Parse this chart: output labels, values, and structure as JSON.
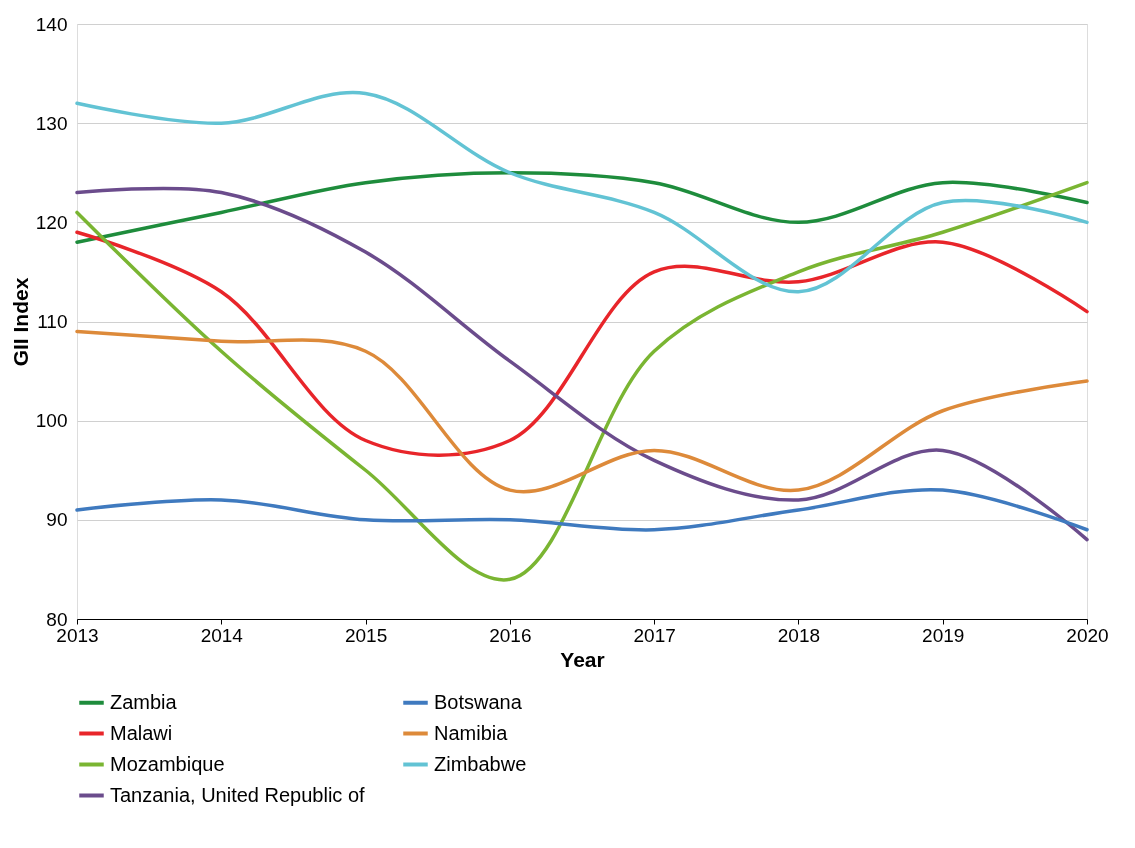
{
  "chart_data": {
    "type": "line",
    "xlabel": "Year",
    "ylabel": "GII Index",
    "x": [
      2013,
      2014,
      2015,
      2016,
      2017,
      2018,
      2019,
      2020
    ],
    "xlim": [
      2013,
      2020
    ],
    "xticks": [
      2013,
      2014,
      2015,
      2016,
      2017,
      2018,
      2019,
      2020
    ],
    "ylim": [
      80,
      140
    ],
    "yticks": [
      80,
      90,
      100,
      110,
      120,
      130,
      140
    ],
    "grid": "y",
    "legend": "bottom",
    "marker": "none",
    "line_style": "solid",
    "series": [
      {
        "name": "Zambia",
        "color": "#1e8c3c",
        "values": [
          118,
          121,
          124,
          125,
          124,
          120,
          124,
          122
        ]
      },
      {
        "name": "Malawi",
        "color": "#e8252a",
        "values": [
          119,
          113,
          98,
          98,
          115,
          114,
          118,
          111
        ]
      },
      {
        "name": "Mozambique",
        "color": "#7ab532",
        "values": [
          121,
          107,
          95,
          84,
          107,
          115,
          119,
          124
        ]
      },
      {
        "name": "Tanzania, United Republic of",
        "color": "#6b4c8c",
        "values": [
          123,
          123,
          117,
          106,
          96,
          92,
          97,
          88
        ]
      },
      {
        "name": "Botswana",
        "color": "#3f7abf",
        "values": [
          91,
          92,
          90,
          90,
          89,
          91,
          93,
          89
        ]
      },
      {
        "name": "Namibia",
        "color": "#dd8a3a",
        "values": [
          109,
          108,
          107,
          93,
          97,
          93,
          101,
          104
        ]
      },
      {
        "name": "Zimbabwe",
        "color": "#62c3d4",
        "values": [
          132,
          130,
          133,
          125,
          121,
          113,
          122,
          120
        ]
      }
    ]
  }
}
